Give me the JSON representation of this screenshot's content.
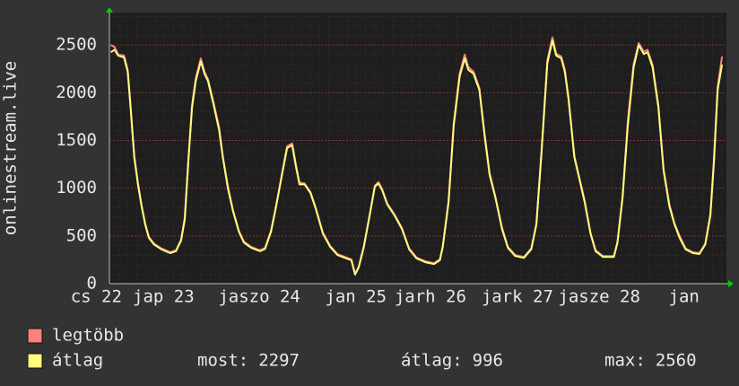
{
  "chart_data": {
    "type": "line",
    "y_label": "onlinestream.live",
    "xlim": [
      0,
      8.44
    ],
    "xticks": [
      {
        "value": -0.18,
        "label": "cs 22"
      },
      {
        "value": 0.74,
        "label": "jap 23"
      },
      {
        "value": 2.05,
        "label": "jaszo 24"
      },
      {
        "value": 3.37,
        "label": "jan 25"
      },
      {
        "value": 4.39,
        "label": "jarh 26"
      },
      {
        "value": 5.58,
        "label": "jark 27"
      },
      {
        "value": 6.7,
        "label": "jasze 28"
      },
      {
        "value": 7.86,
        "label": "jan"
      }
    ],
    "ylim": [
      0,
      2840
    ],
    "yticks": [
      0,
      500,
      1000,
      1500,
      2000,
      2500
    ],
    "grid": true,
    "x": [
      0.02,
      0.07,
      0.12,
      0.2,
      0.25,
      0.29,
      0.34,
      0.39,
      0.44,
      0.49,
      0.54,
      0.61,
      0.71,
      0.83,
      0.91,
      0.98,
      1.03,
      1.08,
      1.13,
      1.18,
      1.25,
      1.3,
      1.35,
      1.42,
      1.5,
      1.55,
      1.62,
      1.69,
      1.77,
      1.84,
      1.94,
      2.06,
      2.13,
      2.21,
      2.28,
      2.36,
      2.43,
      2.5,
      2.55,
      2.6,
      2.67,
      2.75,
      2.82,
      2.92,
      3.02,
      3.12,
      3.24,
      3.31,
      3.36,
      3.41,
      3.48,
      3.56,
      3.63,
      3.68,
      3.73,
      3.8,
      3.9,
      4.0,
      4.1,
      4.2,
      4.32,
      4.44,
      4.52,
      4.56,
      4.64,
      4.71,
      4.79,
      4.86,
      4.91,
      4.98,
      5.06,
      5.13,
      5.2,
      5.28,
      5.37,
      5.45,
      5.55,
      5.67,
      5.77,
      5.84,
      5.91,
      5.99,
      6.06,
      6.11,
      6.18,
      6.23,
      6.28,
      6.36,
      6.43,
      6.5,
      6.58,
      6.65,
      6.75,
      6.9,
      6.95,
      7.02,
      7.09,
      7.17,
      7.24,
      7.31,
      7.36,
      7.43,
      7.51,
      7.58,
      7.66,
      7.73,
      7.8,
      7.88,
      7.98,
      8.07,
      8.15,
      8.22,
      8.27,
      8.32,
      8.38
    ],
    "series": [
      {
        "name": "legtöbb",
        "color": "#ff8080",
        "values": [
          2500,
          2480,
          2400,
          2390,
          2240,
          1870,
          1340,
          1060,
          820,
          630,
          490,
          420,
          370,
          330,
          350,
          460,
          690,
          1300,
          1870,
          2150,
          2360,
          2220,
          2140,
          1910,
          1640,
          1340,
          1020,
          770,
          555,
          440,
          385,
          350,
          375,
          555,
          820,
          1150,
          1440,
          1470,
          1250,
          1060,
          1050,
          960,
          800,
          535,
          395,
          310,
          275,
          255,
          105,
          180,
          395,
          725,
          1025,
          1065,
          990,
          840,
          725,
          585,
          370,
          275,
          235,
          215,
          255,
          395,
          870,
          1680,
          2200,
          2400,
          2270,
          2220,
          2050,
          1580,
          1160,
          910,
          590,
          385,
          300,
          280,
          370,
          630,
          1390,
          2340,
          2580,
          2410,
          2380,
          2240,
          1950,
          1340,
          1100,
          870,
          535,
          350,
          290,
          290,
          440,
          920,
          1700,
          2300,
          2520,
          2430,
          2450,
          2290,
          1860,
          1200,
          830,
          630,
          500,
          370,
          330,
          320,
          420,
          730,
          1310,
          2060,
          2380
        ]
      },
      {
        "name": "átlag",
        "color": "#ffff80",
        "values": [
          2425,
          2450,
          2390,
          2370,
          2220,
          1840,
          1325,
          1040,
          810,
          620,
          480,
          410,
          360,
          320,
          340,
          450,
          670,
          1280,
          1840,
          2120,
          2330,
          2200,
          2120,
          1890,
          1610,
          1325,
          1000,
          760,
          545,
          430,
          375,
          340,
          365,
          545,
          810,
          1140,
          1420,
          1450,
          1230,
          1040,
          1040,
          950,
          790,
          525,
          385,
          300,
          265,
          245,
          95,
          170,
          385,
          715,
          1015,
          1050,
          980,
          830,
          715,
          575,
          360,
          265,
          225,
          205,
          245,
          385,
          855,
          1655,
          2170,
          2360,
          2240,
          2200,
          2030,
          1560,
          1140,
          900,
          575,
          375,
          290,
          270,
          360,
          620,
          1370,
          2310,
          2550,
          2390,
          2360,
          2220,
          1935,
          1325,
          1090,
          855,
          525,
          340,
          280,
          280,
          430,
          900,
          1655,
          2265,
          2500,
          2405,
          2425,
          2265,
          1840,
          1185,
          810,
          620,
          480,
          360,
          320,
          310,
          410,
          715,
          1280,
          2030,
          2295
        ]
      }
    ],
    "stats": [
      {
        "label": "most:",
        "value": 2297
      },
      {
        "label": "átlag:",
        "value": 996
      },
      {
        "label": "max:",
        "value": 2560
      }
    ]
  }
}
